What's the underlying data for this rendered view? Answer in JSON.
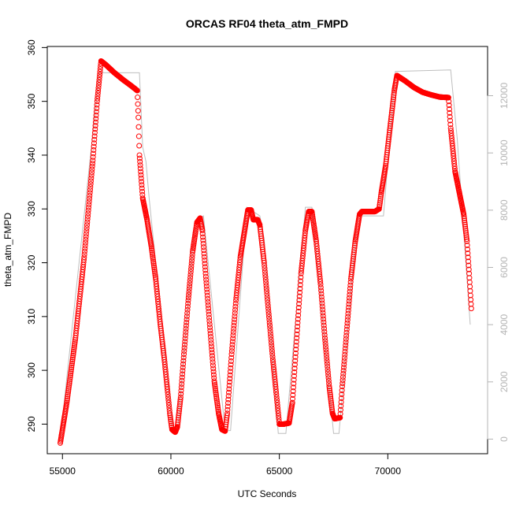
{
  "chart_data": {
    "type": "scatter",
    "title": "ORCAS RF04 theta_atm_FMPD",
    "xlabel": "UTC Seconds",
    "ylabel": "theta_atm_FMPD",
    "xlim": [
      54300,
      74600
    ],
    "ylim": [
      284.5,
      360.2
    ],
    "x_ticks": [
      55000,
      60000,
      65000,
      70000
    ],
    "y_ticks": [
      290,
      300,
      310,
      320,
      330,
      340,
      350,
      360
    ],
    "y2lim": [
      -510,
      13720
    ],
    "y2_ticks": [
      0,
      2000,
      4000,
      6000,
      8000,
      10000,
      12000
    ],
    "colors": {
      "points": "#ff0000",
      "line": "#bebebe",
      "right_axis": "#b4b4b4"
    },
    "series": [
      {
        "type": "scatter",
        "axis": "left",
        "points": [
          [
            54900,
            286.5
          ],
          [
            55200,
            294
          ],
          [
            55600,
            306
          ],
          [
            56000,
            321
          ],
          [
            56400,
            339
          ],
          [
            56600,
            350
          ],
          [
            56780,
            357.5
          ],
          [
            57000,
            356.8
          ],
          [
            57400,
            355.3
          ],
          [
            57800,
            354
          ],
          [
            58200,
            352.8
          ],
          [
            58450,
            352
          ],
          [
            58500,
            347
          ],
          [
            58550,
            340
          ],
          [
            58700,
            332
          ],
          [
            58900,
            328
          ],
          [
            59100,
            323
          ],
          [
            59300,
            317
          ],
          [
            59500,
            309
          ],
          [
            59700,
            302
          ],
          [
            59850,
            296
          ],
          [
            59950,
            292
          ],
          [
            60050,
            289
          ],
          [
            60200,
            288.5
          ],
          [
            60300,
            289.5
          ],
          [
            60450,
            295
          ],
          [
            60600,
            303
          ],
          [
            60800,
            313
          ],
          [
            61000,
            322
          ],
          [
            61200,
            327.5
          ],
          [
            61350,
            328.3
          ],
          [
            61450,
            326
          ],
          [
            61600,
            318
          ],
          [
            61800,
            308
          ],
          [
            62000,
            298
          ],
          [
            62200,
            292
          ],
          [
            62350,
            289
          ],
          [
            62500,
            288.7
          ],
          [
            62600,
            292
          ],
          [
            62800,
            303
          ],
          [
            63000,
            313
          ],
          [
            63200,
            321
          ],
          [
            63400,
            326
          ],
          [
            63550,
            329.8
          ],
          [
            63700,
            329.8
          ],
          [
            63800,
            328
          ],
          [
            64000,
            328
          ],
          [
            64100,
            327
          ],
          [
            64300,
            320
          ],
          [
            64500,
            311
          ],
          [
            64700,
            302
          ],
          [
            64850,
            296
          ],
          [
            64950,
            292
          ],
          [
            65000,
            290
          ],
          [
            65200,
            290
          ],
          [
            65450,
            290.2
          ],
          [
            65600,
            294
          ],
          [
            65800,
            306
          ],
          [
            66000,
            318
          ],
          [
            66200,
            326
          ],
          [
            66350,
            329.5
          ],
          [
            66500,
            329.5
          ],
          [
            66700,
            324
          ],
          [
            66900,
            316
          ],
          [
            67100,
            306
          ],
          [
            67300,
            297
          ],
          [
            67450,
            292
          ],
          [
            67550,
            291
          ],
          [
            67800,
            291.2
          ],
          [
            67900,
            297
          ],
          [
            68100,
            307
          ],
          [
            68300,
            317
          ],
          [
            68500,
            324
          ],
          [
            68700,
            329
          ],
          [
            68800,
            329.5
          ],
          [
            69400,
            329.5
          ],
          [
            69600,
            330
          ],
          [
            69700,
            333
          ],
          [
            69900,
            338
          ],
          [
            70100,
            345
          ],
          [
            70300,
            352
          ],
          [
            70420,
            354.8
          ],
          [
            70800,
            353.8
          ],
          [
            71200,
            352.6
          ],
          [
            71600,
            351.7
          ],
          [
            72000,
            351.2
          ],
          [
            72400,
            350.8
          ],
          [
            72800,
            350.7
          ],
          [
            72900,
            345
          ],
          [
            73100,
            337
          ],
          [
            73300,
            333
          ],
          [
            73500,
            329
          ],
          [
            73650,
            324
          ],
          [
            73750,
            318
          ],
          [
            73850,
            311.5
          ]
        ]
      },
      {
        "type": "line",
        "axis": "right",
        "points": [
          [
            54900,
            0
          ],
          [
            56700,
            12800
          ],
          [
            58550,
            12800
          ],
          [
            58700,
            10200
          ],
          [
            58850,
            9700
          ],
          [
            59000,
            8400
          ],
          [
            60100,
            200
          ],
          [
            60300,
            200
          ],
          [
            61100,
            7600
          ],
          [
            61500,
            7800
          ],
          [
            62500,
            300
          ],
          [
            62750,
            300
          ],
          [
            63500,
            8100
          ],
          [
            63900,
            7900
          ],
          [
            64100,
            7800
          ],
          [
            64300,
            7000
          ],
          [
            64950,
            200
          ],
          [
            65300,
            200
          ],
          [
            66200,
            8100
          ],
          [
            66500,
            8100
          ],
          [
            67500,
            200
          ],
          [
            67750,
            200
          ],
          [
            68600,
            7800
          ],
          [
            69800,
            7800
          ],
          [
            70350,
            12850
          ],
          [
            72900,
            12900
          ],
          [
            73200,
            10500
          ],
          [
            73800,
            4000
          ]
        ]
      }
    ]
  }
}
